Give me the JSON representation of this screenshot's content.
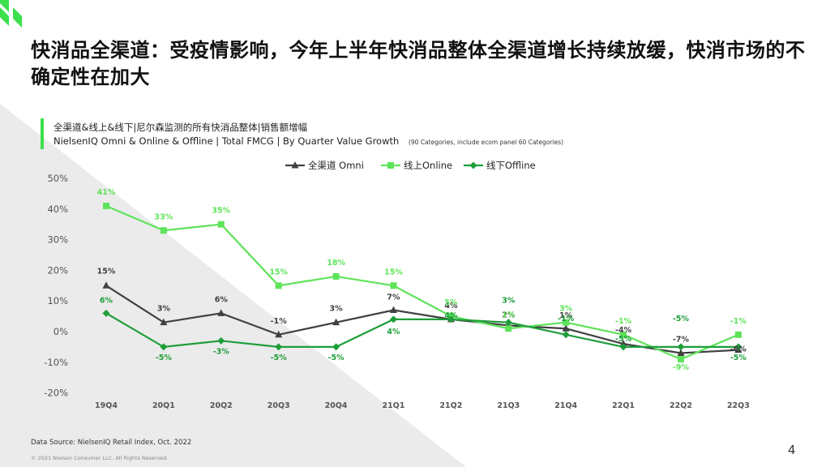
{
  "title": "快消品全渠道：受疫情影响，今年上半年快消品整体全渠道增长持续放缓，快消市场的不确定性在加大",
  "subtitle_cn": "全渠道&线上&线下|尼尔森监测的所有快消品整体|销售额增幅",
  "subtitle_en": "NielsenIQ Omni & Online & Offline  | Total FMCG | By Quarter Value Growth",
  "subtitle_note": "(90 Categories, include ecom panel 60 Categories)",
  "source": "Data Source: NielsenIQ Retail Index, Oct. 2022",
  "copyright": "© 2021 Nielsen Consumer LLC. All Rights Reserved.",
  "page_number": "4",
  "colors": {
    "omni": "#404040",
    "online": "#5ee35a",
    "offline": "#1e9e3a",
    "accent": "#3be04b"
  },
  "chart_data": {
    "type": "line",
    "categories": [
      "19Q4",
      "20Q1",
      "20Q2",
      "20Q3",
      "20Q4",
      "21Q1",
      "21Q2",
      "21Q3",
      "21Q4",
      "22Q1",
      "22Q2",
      "22Q3"
    ],
    "ylim": [
      -20,
      50
    ],
    "yticks": [
      "50%",
      "40%",
      "30%",
      "20%",
      "10%",
      "0%",
      "-10%",
      "-20%"
    ],
    "series": [
      {
        "name": "全渠道 Omni",
        "marker": "triangle",
        "values": [
          15,
          3,
          6,
          -1,
          3,
          7,
          4,
          2,
          1,
          -4,
          -7,
          -6
        ],
        "labels": [
          "15%",
          "3%",
          "6%",
          "-1%",
          "3%",
          "7%",
          "4%",
          "2%",
          "1%",
          "-4%",
          "-7%",
          "-6%"
        ]
      },
      {
        "name": "线上Online",
        "marker": "square",
        "values": [
          41,
          33,
          35,
          15,
          18,
          15,
          5,
          1,
          3,
          -1,
          -9,
          -1
        ],
        "labels": [
          "41%",
          "33%",
          "35%",
          "15%",
          "18%",
          "15%",
          "5%",
          "1%",
          "3%",
          "-1%",
          "-9%",
          "-1%"
        ]
      },
      {
        "name": "线下Offline",
        "marker": "diamond",
        "values": [
          6,
          -5,
          -3,
          -5,
          -5,
          4,
          4,
          3,
          -1,
          -5,
          -5,
          -5
        ],
        "labels": [
          "6%",
          "-5%",
          "-3%",
          "-5%",
          "-5%",
          "4%",
          "4%",
          "3%",
          "-1%",
          "-5%",
          "-5%",
          "-5%"
        ]
      }
    ]
  }
}
